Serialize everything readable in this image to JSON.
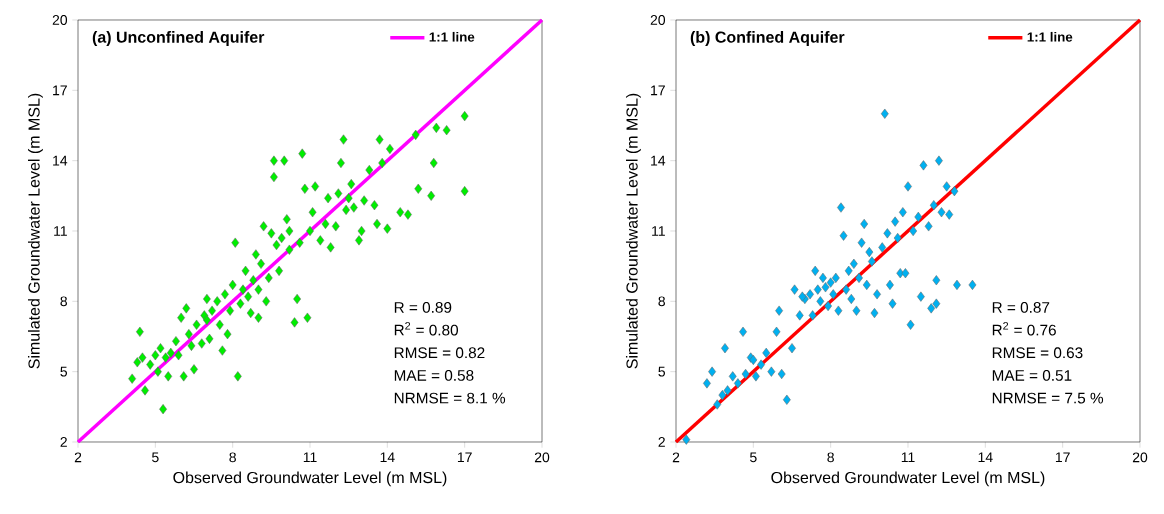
{
  "chart_data": [
    {
      "type": "scatter",
      "title": "(a) Unconfined Aquifer",
      "xlabel": "Observed Groundwater Level (m MSL)",
      "ylabel": "Simulated Groundwater Level (m MSL)",
      "xlim": [
        2,
        20
      ],
      "ylim": [
        2,
        20
      ],
      "xticks": [
        2,
        5,
        8,
        11,
        14,
        17,
        20
      ],
      "yticks": [
        2,
        5,
        8,
        11,
        14,
        17,
        20
      ],
      "legend": "top right",
      "annotations": [
        "R = 0.89",
        "R$^{2}$ = 0.80",
        "RMSE = 0.82",
        "MAE = 0.58",
        "NRMSE = 8.1 %"
      ],
      "series": [
        {
          "marker": "diamond",
          "color": "#00ee00",
          "x": [
            4.1,
            4.3,
            4.4,
            4.5,
            4.6,
            4.8,
            5.0,
            5.1,
            5.2,
            5.3,
            5.4,
            5.6,
            5.8,
            5.9,
            6.0,
            6.1,
            6.2,
            6.3,
            6.4,
            6.5,
            6.6,
            6.8,
            6.9,
            7.0,
            7.1,
            7.2,
            7.4,
            7.5,
            7.6,
            7.7,
            7.8,
            7.9,
            8.0,
            8.1,
            8.2,
            8.3,
            8.4,
            8.5,
            8.6,
            8.7,
            8.8,
            8.9,
            9.0,
            9.1,
            9.2,
            9.3,
            9.4,
            9.5,
            9.6,
            9.6,
            9.7,
            9.8,
            9.9,
            10.0,
            10.1,
            10.2,
            10.4,
            10.5,
            10.6,
            10.7,
            10.8,
            10.9,
            11.0,
            11.1,
            11.2,
            11.4,
            11.6,
            11.7,
            11.8,
            12.0,
            12.1,
            12.2,
            12.3,
            12.4,
            12.5,
            12.6,
            12.7,
            12.9,
            13.0,
            13.1,
            13.3,
            13.5,
            13.6,
            13.7,
            13.8,
            14.0,
            14.1,
            14.5,
            14.8,
            15.1,
            15.2,
            15.7,
            15.8,
            15.9,
            16.3,
            17.0,
            17.0,
            10.2,
            9.0,
            7.0,
            5.5
          ],
          "values": [
            4.7,
            5.4,
            6.7,
            5.6,
            4.2,
            5.3,
            5.7,
            5.0,
            6.0,
            3.4,
            5.6,
            5.8,
            6.3,
            5.7,
            7.3,
            4.8,
            7.7,
            6.6,
            6.1,
            5.1,
            7.0,
            6.2,
            7.4,
            7.2,
            6.4,
            7.6,
            8.0,
            7.0,
            5.9,
            8.3,
            6.6,
            7.6,
            8.7,
            10.5,
            4.8,
            7.9,
            8.5,
            9.3,
            8.2,
            7.5,
            8.9,
            10.0,
            8.5,
            9.6,
            11.2,
            8.0,
            9.0,
            10.9,
            14.0,
            13.3,
            10.4,
            9.3,
            10.7,
            14.0,
            11.5,
            10.2,
            7.1,
            8.1,
            10.5,
            14.3,
            12.8,
            7.3,
            11.0,
            11.8,
            12.9,
            10.6,
            11.3,
            12.4,
            10.3,
            11.2,
            12.6,
            13.9,
            14.9,
            11.9,
            12.4,
            13.0,
            12.0,
            10.6,
            11.0,
            12.3,
            13.6,
            12.1,
            11.3,
            14.9,
            13.9,
            11.1,
            14.5,
            11.8,
            11.7,
            15.1,
            12.8,
            12.5,
            13.9,
            15.4,
            15.3,
            15.9,
            12.7,
            11.0,
            7.3,
            8.1,
            4.8
          ]
        },
        {
          "type": "line",
          "name": "1:1 line",
          "color": "#ff00ff",
          "x": [
            2,
            20
          ],
          "values": [
            2,
            20
          ]
        }
      ]
    },
    {
      "type": "scatter",
      "title": "(b) Confined Aquifer",
      "xlabel": "Observed Groundwater Level (m MSL)",
      "ylabel": "Simulated Groundwater Level (m MSL)",
      "xlim": [
        2,
        20
      ],
      "ylim": [
        2,
        20
      ],
      "xticks": [
        2,
        5,
        8,
        11,
        14,
        17,
        20
      ],
      "yticks": [
        2,
        5,
        8,
        11,
        14,
        17,
        20
      ],
      "legend": "top right",
      "annotations": [
        "R = 0.87",
        "R$^{2}$ = 0.76",
        "RMSE = 0.63",
        "MAE = 0.51",
        "NRMSE = 7.5 %"
      ],
      "series": [
        {
          "marker": "diamond",
          "color": "#00b0f0",
          "x": [
            2.4,
            3.2,
            3.4,
            3.6,
            3.8,
            3.9,
            4.0,
            4.2,
            4.4,
            4.6,
            4.7,
            4.9,
            5.1,
            5.3,
            5.5,
            5.7,
            5.9,
            6.0,
            6.1,
            6.3,
            6.5,
            6.6,
            6.8,
            7.0,
            7.2,
            7.3,
            7.4,
            7.5,
            7.6,
            7.8,
            7.9,
            8.0,
            8.2,
            8.3,
            8.4,
            8.5,
            8.6,
            8.7,
            8.8,
            8.9,
            9.0,
            9.1,
            9.2,
            9.3,
            9.4,
            9.5,
            9.6,
            9.7,
            9.8,
            10.0,
            10.1,
            10.2,
            10.3,
            10.4,
            10.5,
            10.6,
            10.7,
            10.8,
            10.9,
            11.0,
            11.1,
            11.2,
            11.4,
            11.5,
            11.6,
            11.8,
            11.9,
            12.0,
            12.1,
            12.2,
            12.3,
            12.5,
            12.6,
            12.8,
            12.9,
            13.5,
            12.1,
            7.7,
            8.1,
            6.9,
            5.0
          ],
          "values": [
            2.1,
            4.5,
            5.0,
            3.6,
            4.0,
            6.0,
            4.2,
            4.8,
            4.5,
            6.7,
            4.9,
            5.6,
            4.8,
            5.3,
            5.8,
            5.0,
            6.7,
            7.6,
            4.9,
            3.8,
            6.0,
            8.5,
            7.4,
            8.1,
            8.3,
            7.4,
            9.3,
            8.5,
            8.0,
            8.6,
            7.8,
            8.8,
            9.0,
            7.6,
            12.0,
            10.8,
            8.5,
            9.3,
            8.1,
            9.6,
            7.6,
            9.0,
            10.5,
            11.3,
            8.7,
            10.1,
            9.7,
            7.5,
            8.3,
            10.3,
            16.0,
            10.9,
            8.7,
            7.9,
            11.4,
            10.7,
            9.2,
            11.8,
            9.2,
            12.9,
            7.0,
            11.0,
            11.6,
            8.2,
            13.8,
            11.2,
            7.7,
            12.1,
            8.9,
            14.0,
            11.8,
            12.9,
            11.7,
            12.7,
            8.7,
            8.7,
            7.9,
            9.0,
            8.3,
            8.2,
            5.5
          ]
        },
        {
          "type": "line",
          "name": "1:1 line",
          "color": "#ff0000",
          "x": [
            2,
            20
          ],
          "values": [
            2,
            20
          ]
        }
      ]
    }
  ]
}
